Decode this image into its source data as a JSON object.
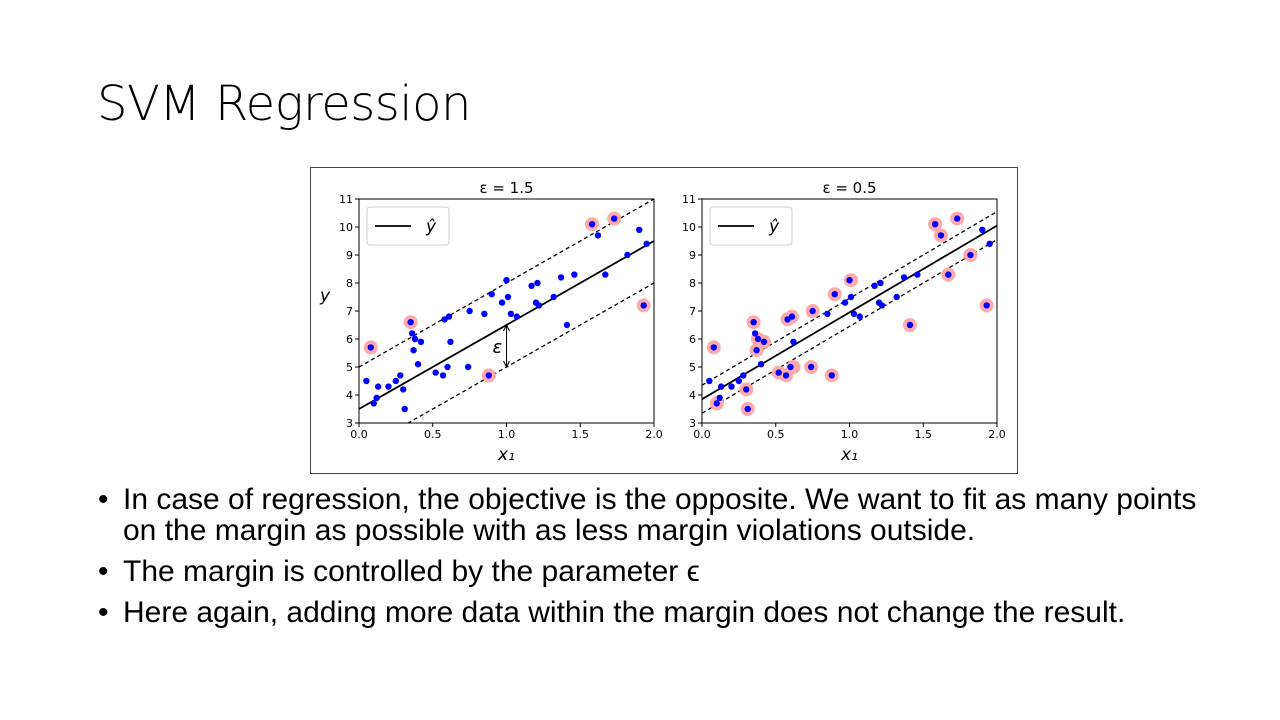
{
  "slide": {
    "title": "SVM Regression",
    "bullet_glyph": "•",
    "bullets": [
      "In case of regression, the objective is the opposite. We want to fit as many points on the margin as possible with as less margin violations outside.",
      "The margin is controlled by the parameter ϵ",
      "Here again, adding more data within the margin does not change the result."
    ]
  },
  "colors": {
    "point": "#0000ff",
    "support_halo": "#ffaaaa",
    "line": "#000000"
  },
  "chart_data": [
    {
      "type": "scatter",
      "title": "ε = 1.5",
      "xlabel": "x₁",
      "ylabel": "y",
      "xlim": [
        0,
        2
      ],
      "ylim": [
        3,
        11
      ],
      "xticks": [
        "0.0",
        "0.5",
        "1.0",
        "1.5",
        "2.0"
      ],
      "yticks": [
        "3",
        "4",
        "5",
        "6",
        "7",
        "8",
        "9",
        "10",
        "11"
      ],
      "legend": {
        "label": "ŷ",
        "placement": "top-left"
      },
      "annotation": "ε",
      "epsilon": 1.5,
      "regression": {
        "intercept": 3.5,
        "slope": 3.0
      },
      "points": [
        [
          0.05,
          4.5
        ],
        [
          0.1,
          3.7
        ],
        [
          0.12,
          3.9
        ],
        [
          0.13,
          4.3
        ],
        [
          0.2,
          4.3
        ],
        [
          0.25,
          4.5
        ],
        [
          0.28,
          4.7
        ],
        [
          0.3,
          4.2
        ],
        [
          0.31,
          3.5
        ],
        [
          0.36,
          6.2
        ],
        [
          0.37,
          5.6
        ],
        [
          0.38,
          6.0
        ],
        [
          0.4,
          5.1
        ],
        [
          0.42,
          5.9
        ],
        [
          0.52,
          4.8
        ],
        [
          0.57,
          4.7
        ],
        [
          0.58,
          6.7
        ],
        [
          0.6,
          5.0
        ],
        [
          0.61,
          6.8
        ],
        [
          0.62,
          5.9
        ],
        [
          0.74,
          5.0
        ],
        [
          0.75,
          7.0
        ],
        [
          0.85,
          6.9
        ],
        [
          0.9,
          7.6
        ],
        [
          0.97,
          7.3
        ],
        [
          1.0,
          8.1
        ],
        [
          1.01,
          7.5
        ],
        [
          1.03,
          6.9
        ],
        [
          1.07,
          6.8
        ],
        [
          1.17,
          7.9
        ],
        [
          1.2,
          7.3
        ],
        [
          1.21,
          8.0
        ],
        [
          1.22,
          7.2
        ],
        [
          1.32,
          7.5
        ],
        [
          1.37,
          8.2
        ],
        [
          1.41,
          6.5
        ],
        [
          1.46,
          8.3
        ],
        [
          1.62,
          9.7
        ],
        [
          1.67,
          8.3
        ],
        [
          1.82,
          9.0
        ],
        [
          1.9,
          9.9
        ],
        [
          1.95,
          9.4
        ],
        [
          0.08,
          5.7
        ],
        [
          0.35,
          6.6
        ],
        [
          0.88,
          4.7
        ],
        [
          1.58,
          10.1
        ],
        [
          1.73,
          10.3
        ],
        [
          1.93,
          7.2
        ]
      ],
      "support_vectors": [
        [
          0.08,
          5.7
        ],
        [
          0.35,
          6.6
        ],
        [
          0.88,
          4.7
        ],
        [
          1.58,
          10.1
        ],
        [
          1.73,
          10.3
        ],
        [
          1.93,
          7.2
        ]
      ]
    },
    {
      "type": "scatter",
      "title": "ε = 0.5",
      "xlabel": "x₁",
      "xlim": [
        0,
        2
      ],
      "ylim": [
        3,
        11
      ],
      "xticks": [
        "0.0",
        "0.5",
        "1.0",
        "1.5",
        "2.0"
      ],
      "yticks": [
        "3",
        "4",
        "5",
        "6",
        "7",
        "8",
        "9",
        "10",
        "11"
      ],
      "legend": {
        "label": "ŷ",
        "placement": "top-left"
      },
      "epsilon": 0.5,
      "regression": {
        "intercept": 3.85,
        "slope": 3.1
      },
      "points": [
        [
          0.05,
          4.5
        ],
        [
          0.1,
          3.7
        ],
        [
          0.12,
          3.9
        ],
        [
          0.13,
          4.3
        ],
        [
          0.2,
          4.3
        ],
        [
          0.25,
          4.5
        ],
        [
          0.28,
          4.7
        ],
        [
          0.3,
          4.2
        ],
        [
          0.31,
          3.5
        ],
        [
          0.36,
          6.2
        ],
        [
          0.37,
          5.6
        ],
        [
          0.38,
          6.0
        ],
        [
          0.4,
          5.1
        ],
        [
          0.42,
          5.9
        ],
        [
          0.52,
          4.8
        ],
        [
          0.57,
          4.7
        ],
        [
          0.58,
          6.7
        ],
        [
          0.6,
          5.0
        ],
        [
          0.61,
          6.8
        ],
        [
          0.62,
          5.9
        ],
        [
          0.74,
          5.0
        ],
        [
          0.75,
          7.0
        ],
        [
          0.85,
          6.9
        ],
        [
          0.9,
          7.6
        ],
        [
          0.97,
          7.3
        ],
        [
          1.0,
          8.1
        ],
        [
          1.01,
          7.5
        ],
        [
          1.03,
          6.9
        ],
        [
          1.07,
          6.8
        ],
        [
          1.17,
          7.9
        ],
        [
          1.2,
          7.3
        ],
        [
          1.21,
          8.0
        ],
        [
          1.22,
          7.2
        ],
        [
          1.32,
          7.5
        ],
        [
          1.37,
          8.2
        ],
        [
          1.41,
          6.5
        ],
        [
          1.46,
          8.3
        ],
        [
          1.62,
          9.7
        ],
        [
          1.67,
          8.3
        ],
        [
          1.82,
          9.0
        ],
        [
          1.9,
          9.9
        ],
        [
          1.95,
          9.4
        ],
        [
          0.08,
          5.7
        ],
        [
          0.35,
          6.6
        ],
        [
          0.88,
          4.7
        ],
        [
          1.58,
          10.1
        ],
        [
          1.73,
          10.3
        ],
        [
          1.93,
          7.2
        ]
      ],
      "support_vectors": [
        [
          0.08,
          5.7
        ],
        [
          0.1,
          3.7
        ],
        [
          0.3,
          4.2
        ],
        [
          0.31,
          3.5
        ],
        [
          0.35,
          6.6
        ],
        [
          0.37,
          5.6
        ],
        [
          0.38,
          6.0
        ],
        [
          0.42,
          5.9
        ],
        [
          0.52,
          4.8
        ],
        [
          0.57,
          4.7
        ],
        [
          0.58,
          6.7
        ],
        [
          0.61,
          6.8
        ],
        [
          0.62,
          5.0
        ],
        [
          0.74,
          5.0
        ],
        [
          0.75,
          7.0
        ],
        [
          0.88,
          4.7
        ],
        [
          0.9,
          7.6
        ],
        [
          1.01,
          8.1
        ],
        [
          1.41,
          6.5
        ],
        [
          1.58,
          10.1
        ],
        [
          1.62,
          9.7
        ],
        [
          1.67,
          8.3
        ],
        [
          1.73,
          10.3
        ],
        [
          1.82,
          9.0
        ],
        [
          1.93,
          7.2
        ]
      ]
    }
  ]
}
